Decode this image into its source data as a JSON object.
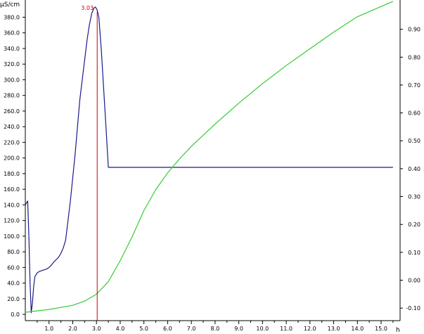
{
  "chart_data": {
    "type": "line",
    "x_unit": "h",
    "left_axis_unit": "µS/cm",
    "x_ticks": [
      "1.0",
      "2.0",
      "3.0",
      "4.0",
      "5.0",
      "6.0",
      "7.0",
      "8.0",
      "9.0",
      "10.0",
      "11.0",
      "12.0",
      "13.0",
      "14.0",
      "15.0"
    ],
    "left_ticks": [
      "0.0",
      "20.0",
      "40.0",
      "60.0",
      "80.0",
      "100.0",
      "120.0",
      "140.0",
      "160.0",
      "180.0",
      "200.0",
      "220.0",
      "240.0",
      "260.0",
      "280.0",
      "300.0",
      "320.0",
      "340.0",
      "360.0",
      "380.0"
    ],
    "right_ticks": [
      "-0.10",
      "0.00",
      "0.10",
      "0.20",
      "0.30",
      "0.40",
      "0.50",
      "0.60",
      "0.70",
      "0.80",
      "0.90"
    ],
    "xlim": [
      0,
      15.8
    ],
    "ylim_left": [
      -8,
      402
    ],
    "ylim_right": [
      -0.145,
      1.005
    ],
    "marker": {
      "x": 3.03,
      "label": "3.03",
      "color": "#cc0000"
    },
    "series": [
      {
        "axis": "left",
        "color": "#1a1a8c",
        "x": [
          0,
          0.1,
          0.15,
          0.2,
          0.25,
          0.3,
          0.35,
          0.4,
          0.5,
          0.6,
          0.7,
          0.8,
          0.9,
          1.0,
          1.1,
          1.2,
          1.3,
          1.4,
          1.5,
          1.6,
          1.7,
          1.8,
          1.9,
          2.0,
          2.1,
          2.2,
          2.3,
          2.4,
          2.5,
          2.6,
          2.7,
          2.8,
          2.9,
          2.95,
          3.0,
          3.03,
          3.1,
          3.2,
          3.3,
          3.4,
          3.5,
          15.5
        ],
        "y": [
          140,
          145,
          100,
          40,
          2,
          15,
          35,
          48,
          53,
          55,
          56,
          57,
          58,
          60,
          63,
          67,
          70,
          73,
          78,
          85,
          95,
          120,
          145,
          175,
          205,
          240,
          275,
          300,
          325,
          350,
          370,
          385,
          392,
          393,
          391,
          389,
          380,
          340,
          290,
          240,
          188,
          188
        ]
      },
      {
        "axis": "right",
        "color": "#33cc33",
        "x": [
          0,
          1.0,
          2.0,
          2.5,
          3.0,
          3.5,
          4.0,
          4.5,
          5.0,
          5.5,
          6.0,
          6.5,
          7.0,
          8.0,
          9.0,
          10.0,
          11.0,
          12.0,
          13.0,
          14.0,
          15.5
        ],
        "y": [
          -0.115,
          -0.105,
          -0.09,
          -0.075,
          -0.05,
          -0.005,
          0.07,
          0.155,
          0.25,
          0.325,
          0.385,
          0.435,
          0.48,
          0.56,
          0.635,
          0.705,
          0.77,
          0.83,
          0.89,
          0.945,
          1.0
        ]
      }
    ]
  }
}
